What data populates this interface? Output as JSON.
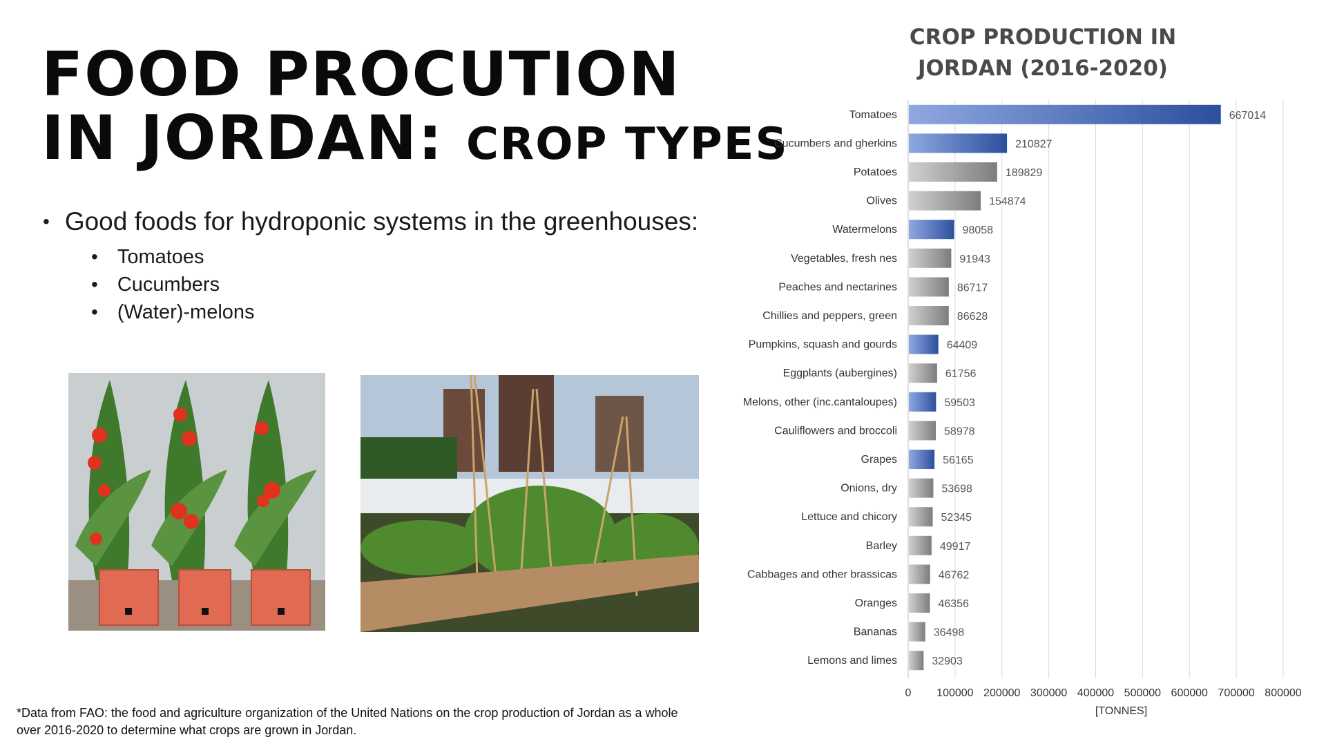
{
  "slide": {
    "title_line1": "FOOD PROCUTION",
    "title_line2_a": "IN JORDAN:",
    "title_line2_b": "CROP TYPES",
    "bullet": "Good foods for hydroponic systems in the greenhouses:",
    "sub_bullets": [
      "Tomatoes",
      "Cucumbers",
      "(Water)-melons"
    ],
    "footnote": "*Data from FAO: the food and agriculture organization of the United Nations on the crop production of Jordan as a whole over 2016-2020 to determine what crops are grown in Jordan."
  },
  "chart_data": {
    "type": "bar",
    "orientation": "horizontal",
    "title": "CROP PRODUCTION IN JORDAN (2016-2020)",
    "title_lines": [
      "CROP PRODUCTION IN",
      "JORDAN (2016-2020)"
    ],
    "xlabel": "[TONNES]",
    "ylabel": "",
    "xlim": [
      0,
      800000
    ],
    "xticks": [
      0,
      100000,
      200000,
      300000,
      400000,
      500000,
      600000,
      700000,
      800000
    ],
    "grid": true,
    "legend": "none",
    "categories": [
      "Tomatoes",
      "Cucumbers and gherkins",
      "Potatoes",
      "Olives",
      "Watermelons",
      "Vegetables, fresh nes",
      "Peaches and nectarines",
      "Chillies and peppers, green",
      "Pumpkins, squash and gourds",
      "Eggplants (aubergines)",
      "Melons, other (inc.cantaloupes)",
      "Cauliflowers and broccoli",
      "Grapes",
      "Onions, dry",
      "Lettuce and chicory",
      "Barley",
      "Cabbages and other brassicas",
      "Oranges",
      "Bananas",
      "Lemons and limes"
    ],
    "values": [
      667014,
      210827,
      189829,
      154874,
      98058,
      91943,
      86717,
      86628,
      64409,
      61756,
      59503,
      58978,
      56165,
      53698,
      52345,
      49917,
      46762,
      46356,
      36498,
      32903
    ],
    "highlighted": [
      true,
      true,
      false,
      false,
      true,
      false,
      false,
      false,
      true,
      false,
      true,
      false,
      true,
      false,
      false,
      false,
      false,
      false,
      false,
      false
    ],
    "colors": {
      "highlight_start": "#8fa8e0",
      "highlight_end": "#2c4f9e",
      "plain_start": "#d0d0d0",
      "plain_end": "#7d7d7d",
      "grid": "#d9d9d9"
    }
  }
}
